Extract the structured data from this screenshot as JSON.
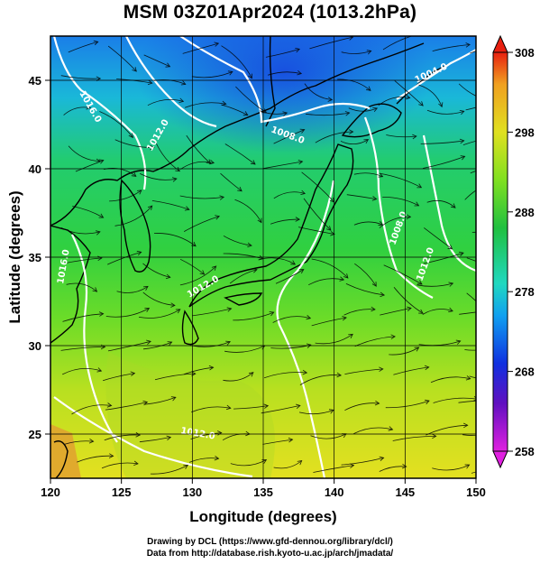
{
  "title": "MSM 03Z01Apr2024 (1013.2hPa)",
  "x_axis": {
    "title": "Longitude (degrees)",
    "range": [
      120,
      150
    ],
    "ticks": [
      "120",
      "125",
      "130",
      "135",
      "140",
      "145",
      "150"
    ]
  },
  "y_axis": {
    "title": "Latitude  (degrees)",
    "range": [
      22.5,
      47.5
    ],
    "ticks": [
      "25",
      "30",
      "35",
      "40",
      "45"
    ]
  },
  "colorbar": {
    "range": [
      258,
      308
    ],
    "ticks": [
      "258",
      "268",
      "278",
      "288",
      "298",
      "308"
    ],
    "colors": [
      "#e020e0",
      "#6010c0",
      "#1030e0",
      "#10a0f0",
      "#20d8c0",
      "#20c040",
      "#80e020",
      "#e0e020",
      "#f0a020",
      "#e82010"
    ]
  },
  "contour_labels": [
    "1016.0",
    "1012.0",
    "1008.0",
    "1004.0",
    "1008.0",
    "1012.0",
    "1012.0",
    "1016.0",
    "1012.0"
  ],
  "credits": [
    "Drawing by DCL (https://www.gfd-dennou.org/library/dcl/)",
    "Data from http://database.rish.kyoto-u.ac.jp/arch/jmadata/"
  ],
  "colors": {
    "land_outline": "#000000",
    "contour": "#ffffff",
    "streamline": "#000000"
  }
}
